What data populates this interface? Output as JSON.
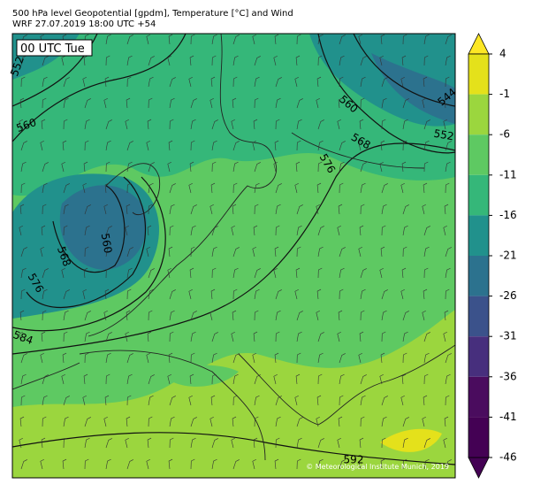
{
  "header": {
    "title": "500 hPa level Geopotential [gpdm], Temperature [°C] and Wind",
    "subtitle": "WRF 27.07.2019 18:00 UTC +54"
  },
  "map": {
    "time_label": "00 UTC Tue",
    "contour_labels": [
      552,
      560,
      568,
      576,
      584,
      560,
      560,
      568,
      552,
      544,
      576,
      592
    ],
    "copyright": "© Meteorological Institute Munich, 2019"
  },
  "colorbar": {
    "ticks": [
      4,
      -1,
      -6,
      -11,
      -16,
      -21,
      -26,
      -31,
      -36,
      -41,
      -46
    ],
    "colors": [
      "#e4e11b",
      "#9bd63e",
      "#5ec962",
      "#35b779",
      "#21918c",
      "#2c728e",
      "#3b528b",
      "#472f7d",
      "#4a0c5e",
      "#440154"
    ],
    "extend_colors": [
      "#fde725",
      "#440154"
    ]
  }
}
